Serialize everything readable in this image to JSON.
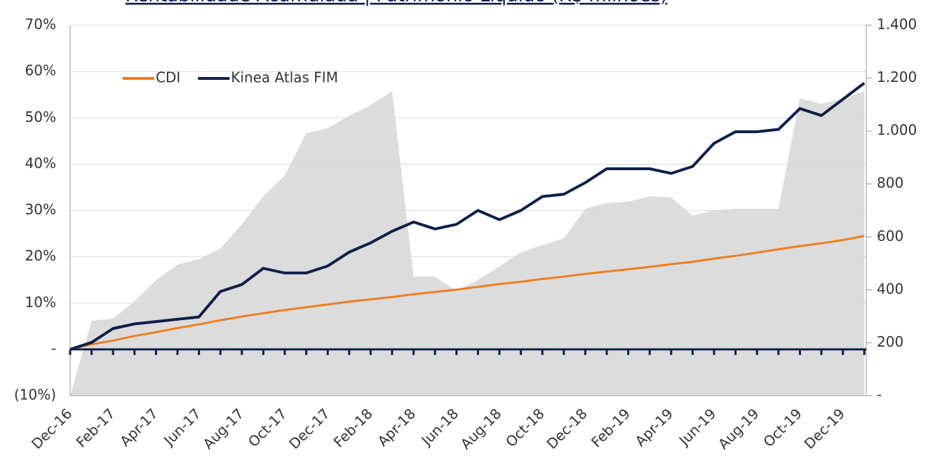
{
  "chart_data": {
    "type": "line",
    "title": "Rentabilidade Acumulada | Patrimônio Líquido (R$ milhões)",
    "x": [
      "Dec-16",
      "Jan-17",
      "Feb-17",
      "Mar-17",
      "Apr-17",
      "May-17",
      "Jun-17",
      "Jul-17",
      "Aug-17",
      "Sep-17",
      "Oct-17",
      "Nov-17",
      "Dec-17",
      "Jan-18",
      "Feb-18",
      "Mar-18",
      "Apr-18",
      "May-18",
      "Jun-18",
      "Jul-18",
      "Aug-18",
      "Sep-18",
      "Oct-18",
      "Nov-18",
      "Dec-18",
      "Jan-19",
      "Feb-19",
      "Mar-19",
      "Apr-19",
      "May-19",
      "Jun-19",
      "Jul-19",
      "Aug-19",
      "Sep-19",
      "Oct-19",
      "Nov-19",
      "Dec-19",
      "Jan-20"
    ],
    "xticks": [
      "Dec-16",
      "Feb-17",
      "Apr-17",
      "Jun-17",
      "Aug-17",
      "Oct-17",
      "Dec-17",
      "Feb-18",
      "Apr-18",
      "Jun-18",
      "Aug-18",
      "Oct-18",
      "Dec-18",
      "Feb-19",
      "Apr-19",
      "Jun-19",
      "Aug-19",
      "Oct-19",
      "Dec-19"
    ],
    "ylim": [
      -10,
      70
    ],
    "yticks": [
      {
        "value": -10,
        "label": "(10%)"
      },
      {
        "value": 0,
        "label": "-"
      },
      {
        "value": 10,
        "label": "10%"
      },
      {
        "value": 20,
        "label": "20%"
      },
      {
        "value": 30,
        "label": "30%"
      },
      {
        "value": 40,
        "label": "40%"
      },
      {
        "value": 50,
        "label": "50%"
      },
      {
        "value": 60,
        "label": "60%"
      },
      {
        "value": 70,
        "label": "70%"
      }
    ],
    "y2lim": [
      0,
      1400
    ],
    "y2ticks": [
      {
        "value": 0,
        "label": "-"
      },
      200,
      400,
      600,
      800,
      {
        "value": 1000,
        "label": "1.000"
      },
      {
        "value": 1200,
        "label": "1.200"
      },
      {
        "value": 1400,
        "label": "1.400"
      }
    ],
    "grid": true,
    "legend": "top-left",
    "series": [
      {
        "type": "area",
        "axis": "y2",
        "color": "#dcdcdc",
        "values": [
          0,
          283,
          291,
          357,
          437,
          495,
          516,
          556,
          648,
          754,
          833,
          992,
          1011,
          1058,
          1098,
          1151,
          450,
          450,
          397,
          437,
          489,
          542,
          569,
          595,
          706,
          728,
          733,
          754,
          749,
          680,
          701,
          706,
          706,
          706,
          1124,
          1103,
          1124,
          1151
        ]
      },
      {
        "name": "CDI",
        "color": "#f07c1e",
        "values": [
          0,
          1.1,
          1.9,
          2.9,
          3.7,
          4.6,
          5.4,
          6.3,
          7.1,
          7.8,
          8.5,
          9.1,
          9.7,
          10.3,
          10.8,
          11.3,
          11.9,
          12.4,
          12.9,
          13.5,
          14.1,
          14.6,
          15.2,
          15.7,
          16.3,
          16.8,
          17.3,
          17.8,
          18.4,
          18.9,
          19.6,
          20.2,
          20.9,
          21.6,
          22.3,
          22.9,
          23.6,
          24.5
        ]
      },
      {
        "name": "Kinea Atlas FIM",
        "color": "#0c1f4a",
        "values": [
          0,
          1.5,
          4.5,
          5.5,
          6,
          6.5,
          7,
          12.5,
          14,
          17.5,
          16.5,
          16.5,
          18,
          21,
          23,
          25.5,
          27.5,
          26,
          27,
          30,
          28,
          30,
          33,
          33.5,
          36,
          39,
          39,
          39,
          38,
          39.5,
          44.5,
          47,
          47,
          47.5,
          52,
          50.5,
          54,
          57.5
        ]
      }
    ]
  }
}
